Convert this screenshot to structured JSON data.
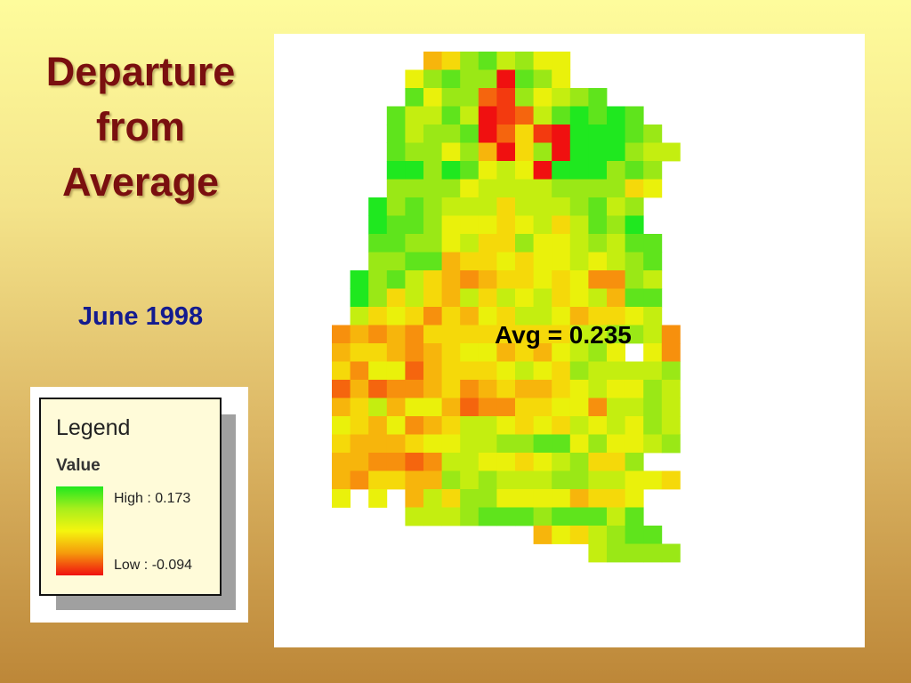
{
  "title": {
    "lines": [
      "Departure",
      "from",
      "Average"
    ]
  },
  "date_label": "June 1998",
  "legend": {
    "title": "Legend",
    "value_label": "Value",
    "high_label": "High : 0.173",
    "low_label": "Low : -0.094",
    "colors": {
      "high": "#1fe81f",
      "mid": "#f5f50e",
      "low": "#f01010"
    }
  },
  "map": {
    "avg_label": "Avg = 0.235",
    "palette": [
      "#f01010",
      "#f33a0f",
      "#f5650e",
      "#f7900d",
      "#f7b50c",
      "#f5d90a",
      "#eaf10b",
      "#c4ee10",
      "#9ae816",
      "#5fe41c",
      "#1fe81f"
    ],
    "rows": [
      ".....45897866......",
      "....689880986......",
      "....96882186789....",
      "...9779701279A9A9..",
      "...9788902510AAA98.",
      "...9886840580AAA877",
      "...AA8A96760AAA898.",
      "...888867777888856.",
      "..A89877757778978..",
      "..A9986665675798A..",
      "..9988675586678799.",
      "..8899455656676789.",
      ".A8975434556563387.",
      ".A8575475767567499.",
      ".75653546577645567.",
      "3434355555555778873",
      "4554345664546786.63",
      "5366245556765877778",
      "2423345345445676687",
      "4574664233556637787",
      "6546345776565767687",
      "5444566778899686678",
      "44332377665678558..",
      "4355448787778877665",
      "6.6.4758866664556..",
      "....7778999899979..",
      "...........4657899.",
      "..............78888"
    ]
  }
}
